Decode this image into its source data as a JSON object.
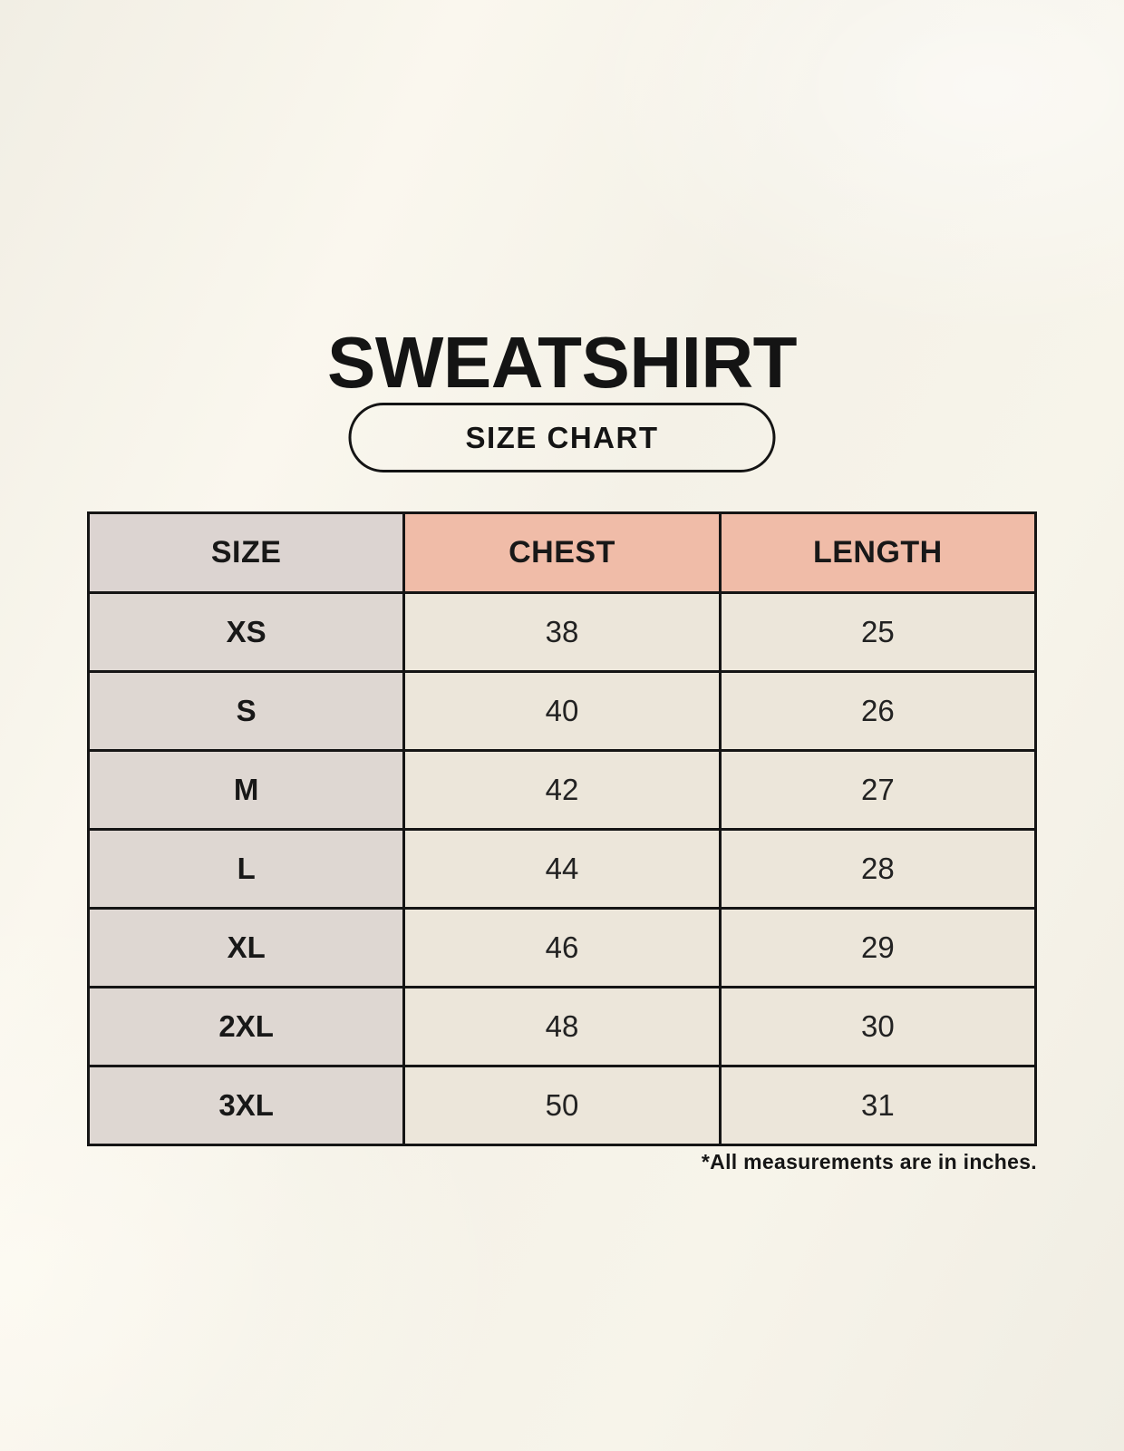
{
  "page": {
    "title": "SWEATSHIRT",
    "badge_label": "SIZE CHART",
    "footnote": "*All measurements are in inches."
  },
  "colors": {
    "background": "#f5f2e8",
    "size_header_bg": "#dcd4d1",
    "measure_header_bg": "#f0bca8",
    "row_label_bg": "#ded7d2",
    "value_cell_bg": "#ece6da",
    "border": "#151515",
    "text": "#181818"
  },
  "chart_data": {
    "type": "table",
    "title": "SWEATSHIRT",
    "subtitle": "SIZE CHART",
    "units": "inches",
    "columns": [
      "SIZE",
      "CHEST",
      "LENGTH"
    ],
    "rows": [
      [
        "XS",
        "38",
        "25"
      ],
      [
        "S",
        "40",
        "26"
      ],
      [
        "M",
        "42",
        "27"
      ],
      [
        "L",
        "44",
        "28"
      ],
      [
        "XL",
        "46",
        "29"
      ],
      [
        "2XL",
        "48",
        "30"
      ],
      [
        "3XL",
        "50",
        "31"
      ]
    ],
    "note": "*All measurements are in inches."
  }
}
